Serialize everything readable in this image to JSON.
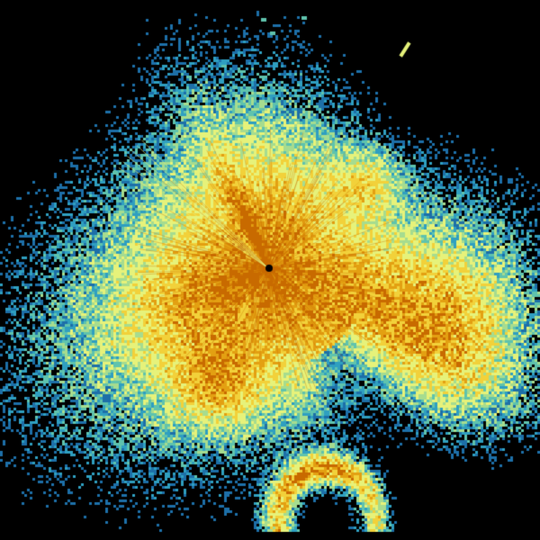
{
  "image": {
    "background": "#000000",
    "palette": [
      "#1d6fa8",
      "#2f9fc0",
      "#5fc3ad",
      "#a6dc8f",
      "#e6f27a",
      "#f2d13a",
      "#e3a012",
      "#c86a00"
    ],
    "center_marker_color": "#000000"
  }
}
